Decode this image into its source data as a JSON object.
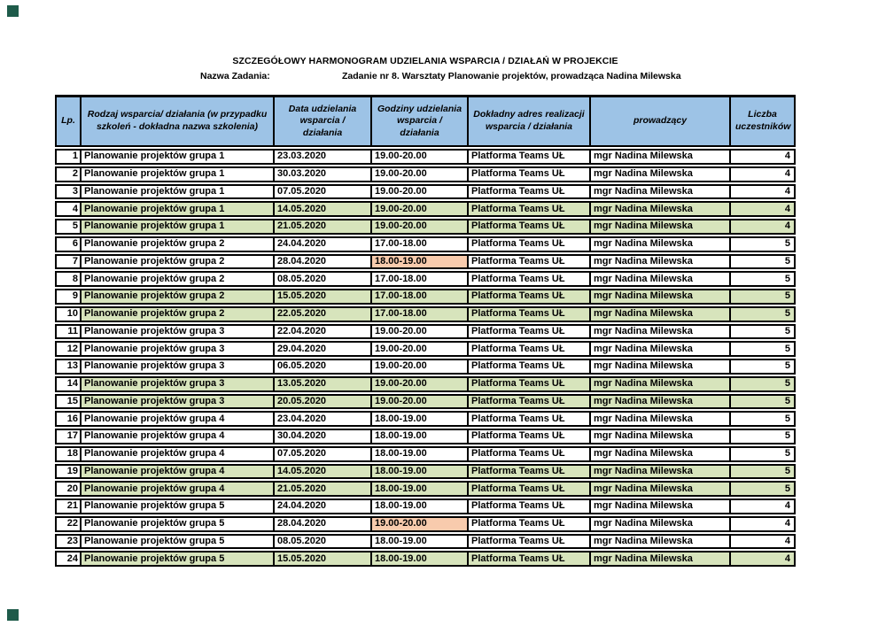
{
  "page": {
    "title": "SZCZEGÓŁOWY HARMONOGRAM UDZIELANIA WSPARCIA / DZIAŁAŃ W PROJEKCIE",
    "task_label": "Nazwa Zadania:",
    "task_value": "Zadanie nr 8. Warsztaty Planowanie projektów, prowadząca Nadina Milewska"
  },
  "colors": {
    "header_bg": "#9dc3e6",
    "row_green": "#d7e4bc",
    "cell_orange": "#f8cbad",
    "border": "#000000",
    "corner_marker": "#1e5b4a"
  },
  "table": {
    "columns": [
      "Lp.",
      "Rodzaj wsparcia/ działania (w przypadku szkoleń - dokładna nazwa szkolenia)",
      "Data udzielania wsparcia / działania",
      "Godziny udzielania wsparcia / działania",
      "Dokładny adres realizacji wsparcia / działania",
      "prowadzący",
      "Liczba uczestników"
    ],
    "rows": [
      {
        "lp": "1",
        "activity": "Planowanie projektów grupa 1",
        "date": "23.03.2020",
        "time": "19.00-20.00",
        "address": "Platforma Teams UŁ",
        "trainer": "mgr Nadina Milewska",
        "participants": "4",
        "highlight": "none",
        "time_highlight": false
      },
      {
        "lp": "2",
        "activity": "Planowanie projektów grupa 1",
        "date": "30.03.2020",
        "time": "19.00-20.00",
        "address": "Platforma Teams UŁ",
        "trainer": "mgr Nadina Milewska",
        "participants": "4",
        "highlight": "none",
        "time_highlight": false
      },
      {
        "lp": "3",
        "activity": "Planowanie projektów grupa 1",
        "date": "07.05.2020",
        "time": "19.00-20.00",
        "address": "Platforma Teams UŁ",
        "trainer": "mgr Nadina Milewska",
        "participants": "4",
        "highlight": "none",
        "time_highlight": false
      },
      {
        "lp": "4",
        "activity": "Planowanie projektów grupa 1",
        "date": "14.05.2020",
        "time": "19.00-20.00",
        "address": "Platforma Teams UŁ",
        "trainer": "mgr Nadina Milewska",
        "participants": "4",
        "highlight": "green",
        "time_highlight": false
      },
      {
        "lp": "5",
        "activity": "Planowanie projektów grupa 1",
        "date": "21.05.2020",
        "time": "19.00-20.00",
        "address": "Platforma Teams UŁ",
        "trainer": "mgr Nadina Milewska",
        "participants": "4",
        "highlight": "green",
        "time_highlight": false
      },
      {
        "lp": "6",
        "activity": "Planowanie projektów grupa 2",
        "date": "24.04.2020",
        "time": "17.00-18.00",
        "address": "Platforma Teams UŁ",
        "trainer": "mgr Nadina Milewska",
        "participants": "5",
        "highlight": "none",
        "time_highlight": false
      },
      {
        "lp": "7",
        "activity": "Planowanie projektów grupa 2",
        "date": "28.04.2020",
        "time": "18.00-19.00",
        "address": "Platforma Teams UŁ",
        "trainer": "mgr Nadina Milewska",
        "participants": "5",
        "highlight": "none",
        "time_highlight": true
      },
      {
        "lp": "8",
        "activity": "Planowanie projektów grupa 2",
        "date": "08.05.2020",
        "time": "17.00-18.00",
        "address": "Platforma Teams UŁ",
        "trainer": "mgr Nadina Milewska",
        "participants": "5",
        "highlight": "none",
        "time_highlight": false
      },
      {
        "lp": "9",
        "activity": "Planowanie projektów grupa 2",
        "date": "15.05.2020",
        "time": "17.00-18.00",
        "address": "Platforma Teams UŁ",
        "trainer": "mgr Nadina Milewska",
        "participants": "5",
        "highlight": "green",
        "time_highlight": false
      },
      {
        "lp": "10",
        "activity": "Planowanie projektów grupa 2",
        "date": "22.05.2020",
        "time": "17.00-18.00",
        "address": "Platforma Teams UŁ",
        "trainer": "mgr Nadina Milewska",
        "participants": "5",
        "highlight": "green",
        "time_highlight": false
      },
      {
        "lp": "11",
        "activity": "Planowanie projektów grupa 3",
        "date": "22.04.2020",
        "time": "19.00-20.00",
        "address": "Platforma Teams UŁ",
        "trainer": "mgr Nadina Milewska",
        "participants": "5",
        "highlight": "none",
        "time_highlight": false
      },
      {
        "lp": "12",
        "activity": "Planowanie projektów grupa 3",
        "date": "29.04.2020",
        "time": "19.00-20.00",
        "address": "Platforma Teams UŁ",
        "trainer": "mgr Nadina Milewska",
        "participants": "5",
        "highlight": "none",
        "time_highlight": false
      },
      {
        "lp": "13",
        "activity": "Planowanie projektów grupa 3",
        "date": "06.05.2020",
        "time": "19.00-20.00",
        "address": "Platforma Teams UŁ",
        "trainer": "mgr Nadina Milewska",
        "participants": "5",
        "highlight": "none",
        "time_highlight": false
      },
      {
        "lp": "14",
        "activity": "Planowanie projektów grupa 3",
        "date": "13.05.2020",
        "time": "19.00-20.00",
        "address": "Platforma Teams UŁ",
        "trainer": "mgr Nadina Milewska",
        "participants": "5",
        "highlight": "green",
        "time_highlight": false
      },
      {
        "lp": "15",
        "activity": "Planowanie projektów grupa 3",
        "date": "20.05.2020",
        "time": "19.00-20.00",
        "address": "Platforma Teams UŁ",
        "trainer": "mgr Nadina Milewska",
        "participants": "5",
        "highlight": "green",
        "time_highlight": false
      },
      {
        "lp": "16",
        "activity": "Planowanie projektów grupa 4",
        "date": "23.04.2020",
        "time": "18.00-19.00",
        "address": "Platforma Teams UŁ",
        "trainer": "mgr Nadina Milewska",
        "participants": "5",
        "highlight": "none",
        "time_highlight": false
      },
      {
        "lp": "17",
        "activity": "Planowanie projektów grupa 4",
        "date": "30.04.2020",
        "time": "18.00-19.00",
        "address": "Platforma Teams UŁ",
        "trainer": "mgr Nadina Milewska",
        "participants": "5",
        "highlight": "none",
        "time_highlight": false
      },
      {
        "lp": "18",
        "activity": "Planowanie projektów grupa 4",
        "date": "07.05.2020",
        "time": "18.00-19.00",
        "address": "Platforma Teams UŁ",
        "trainer": "mgr Nadina Milewska",
        "participants": "5",
        "highlight": "none",
        "time_highlight": false
      },
      {
        "lp": "19",
        "activity": "Planowanie projektów grupa 4",
        "date": "14.05.2020",
        "time": "18.00-19.00",
        "address": "Platforma Teams UŁ",
        "trainer": "mgr Nadina Milewska",
        "participants": "5",
        "highlight": "green",
        "time_highlight": false
      },
      {
        "lp": "20",
        "activity": "Planowanie projektów grupa 4",
        "date": "21.05.2020",
        "time": "18.00-19.00",
        "address": "Platforma Teams UŁ",
        "trainer": "mgr Nadina Milewska",
        "participants": "5",
        "highlight": "green",
        "time_highlight": false
      },
      {
        "lp": "21",
        "activity": "Planowanie projektów grupa 5",
        "date": "24.04.2020",
        "time": "18.00-19.00",
        "address": "Platforma Teams UŁ",
        "trainer": "mgr Nadina Milewska",
        "participants": "4",
        "highlight": "none",
        "time_highlight": false
      },
      {
        "lp": "22",
        "activity": "Planowanie projektów grupa 5",
        "date": "28.04.2020",
        "time": "19.00-20.00",
        "address": "Platforma Teams UŁ",
        "trainer": "mgr Nadina Milewska",
        "participants": "4",
        "highlight": "none",
        "time_highlight": true
      },
      {
        "lp": "23",
        "activity": "Planowanie projektów grupa 5",
        "date": "08.05.2020",
        "time": "18.00-19.00",
        "address": "Platforma Teams UŁ",
        "trainer": "mgr Nadina Milewska",
        "participants": "4",
        "highlight": "none",
        "time_highlight": false
      },
      {
        "lp": "24",
        "activity": "Planowanie projektów grupa 5",
        "date": "15.05.2020",
        "time": "18.00-19.00",
        "address": "Platforma Teams UŁ",
        "trainer": "mgr Nadina Milewska",
        "participants": "4",
        "highlight": "green",
        "time_highlight": false
      }
    ]
  }
}
